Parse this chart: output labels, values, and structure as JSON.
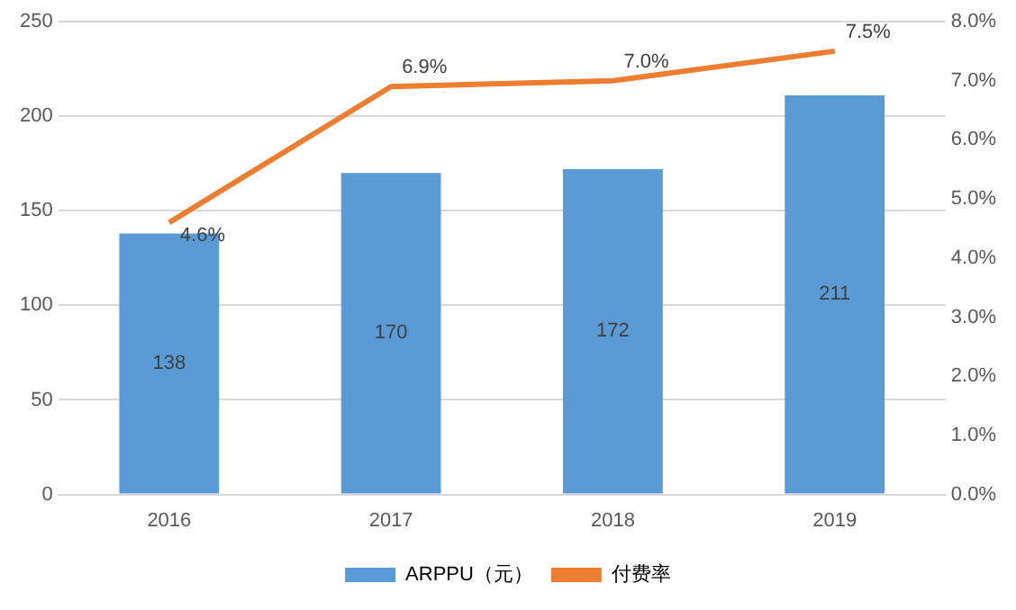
{
  "chart_data": {
    "type": "bar",
    "categories": [
      "2016",
      "2017",
      "2018",
      "2019"
    ],
    "series": [
      {
        "name": "ARPPU（元）",
        "color": "#5b9bd5",
        "values": [
          138,
          170,
          172,
          211
        ],
        "value_labels": [
          "138",
          "170",
          "172",
          "211"
        ]
      },
      {
        "name": "付费率",
        "type": "line",
        "axis": "y2",
        "color": "#ed7d31",
        "values": [
          4.6,
          6.9,
          7.0,
          7.5
        ],
        "value_labels": [
          "4.6%",
          "6.9%",
          "7.0%",
          "7.5%"
        ]
      }
    ],
    "ylim": [
      0,
      250
    ],
    "yticks": [
      0,
      50,
      100,
      150,
      200,
      250
    ],
    "y2lim": [
      0,
      8
    ],
    "y2ticks": [
      {
        "value": 0,
        "label": "0.0%"
      },
      {
        "value": 1,
        "label": "1.0%"
      },
      {
        "value": 2,
        "label": "2.0%"
      },
      {
        "value": 3,
        "label": "3.0%"
      },
      {
        "value": 4,
        "label": "4.0%"
      },
      {
        "value": 5,
        "label": "5.0%"
      },
      {
        "value": 6,
        "label": "6.0%"
      },
      {
        "value": 7,
        "label": "7.0%"
      },
      {
        "value": 8,
        "label": "8.0%"
      }
    ],
    "grid": "y",
    "legend": "bottom",
    "marker": "none",
    "line_style": "solid"
  }
}
